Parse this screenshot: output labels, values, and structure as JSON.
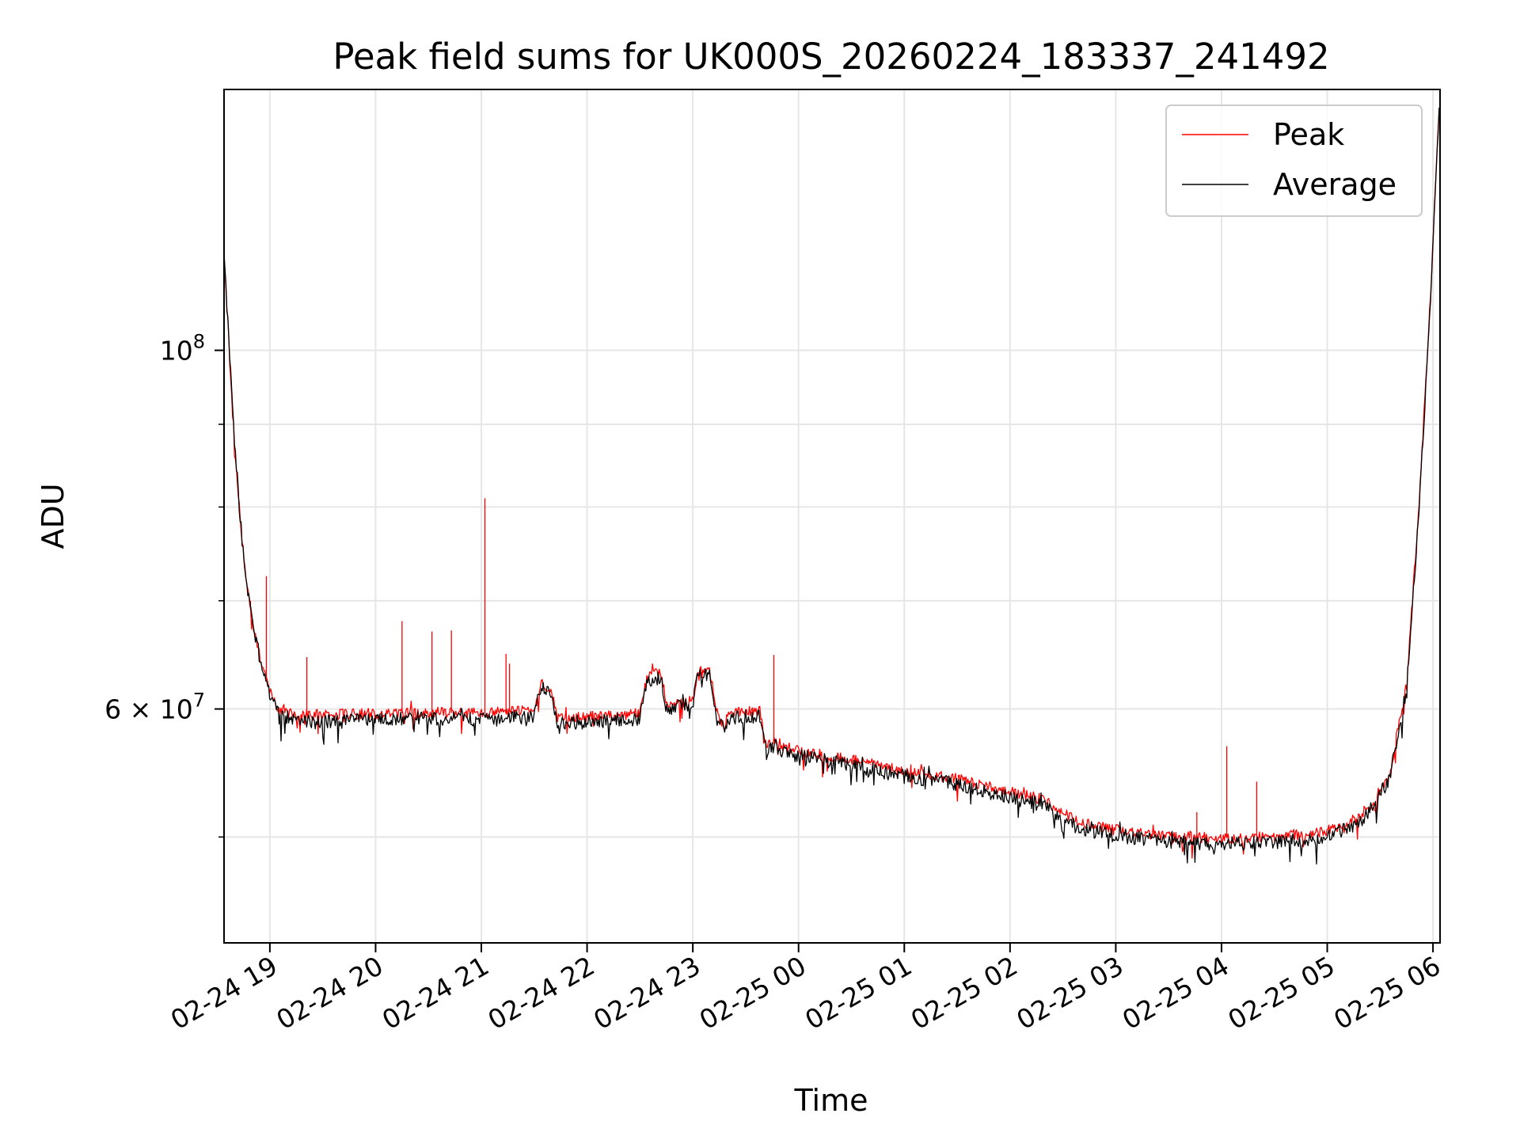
{
  "chart_data": {
    "type": "line",
    "title": "Peak field sums for UK000S_20260224_183337_241492",
    "xlabel": "Time",
    "ylabel": "ADU",
    "y_scale": "log",
    "grid": true,
    "legend_position": "top-right",
    "xlim": [
      "2026-02-24 18:34",
      "2026-02-25 06:04"
    ],
    "ylim": [
      43000000,
      145000000
    ],
    "x_ticks": [
      {
        "value": "2026-02-24 19:00",
        "label": "02-24 19"
      },
      {
        "value": "2026-02-24 20:00",
        "label": "02-24 20"
      },
      {
        "value": "2026-02-24 21:00",
        "label": "02-24 21"
      },
      {
        "value": "2026-02-24 22:00",
        "label": "02-24 22"
      },
      {
        "value": "2026-02-24 23:00",
        "label": "02-24 23"
      },
      {
        "value": "2026-02-25 00:00",
        "label": "02-25 00"
      },
      {
        "value": "2026-02-25 01:00",
        "label": "02-25 01"
      },
      {
        "value": "2026-02-25 02:00",
        "label": "02-25 02"
      },
      {
        "value": "2026-02-25 03:00",
        "label": "02-25 03"
      },
      {
        "value": "2026-02-25 04:00",
        "label": "02-25 04"
      },
      {
        "value": "2026-02-25 05:00",
        "label": "02-25 05"
      },
      {
        "value": "2026-02-25 06:00",
        "label": "02-25 06"
      }
    ],
    "y_major_ticks": [
      {
        "value": 100000000,
        "label_base": "10",
        "label_exp": "8"
      },
      {
        "value": 60000000,
        "label_base": "6 × 10",
        "label_exp": "7"
      }
    ],
    "y_minor_ticks": [
      50000000,
      60000000,
      70000000,
      80000000,
      90000000
    ],
    "series": [
      {
        "name": "Peak",
        "color": "#ff0000",
        "points": [
          [
            "2026-02-24 18:34",
            115000000
          ],
          [
            "2026-02-24 18:37",
            100000000
          ],
          [
            "2026-02-24 18:40",
            88000000
          ],
          [
            "2026-02-24 18:43",
            79000000
          ],
          [
            "2026-02-24 18:46",
            73000000
          ],
          [
            "2026-02-24 18:50",
            68000000
          ],
          [
            "2026-02-24 18:55",
            64000000
          ],
          [
            "2026-02-24 19:00",
            61500000
          ],
          [
            "2026-02-24 19:05",
            60000000
          ],
          [
            "2026-02-24 19:15",
            59500000
          ],
          [
            "2026-02-24 19:30",
            59500000
          ],
          [
            "2026-02-24 20:00",
            59600000
          ],
          [
            "2026-02-24 20:30",
            59700000
          ],
          [
            "2026-02-24 21:00",
            59600000
          ],
          [
            "2026-02-24 21:30",
            59900000
          ],
          [
            "2026-02-24 21:34",
            62500000
          ],
          [
            "2026-02-24 21:40",
            61500000
          ],
          [
            "2026-02-24 21:43",
            59200000
          ],
          [
            "2026-02-24 22:00",
            59300000
          ],
          [
            "2026-02-24 22:30",
            59600000
          ],
          [
            "2026-02-24 22:34",
            62800000
          ],
          [
            "2026-02-24 22:42",
            63200000
          ],
          [
            "2026-02-24 22:45",
            60500000
          ],
          [
            "2026-02-24 23:00",
            60700000
          ],
          [
            "2026-02-24 23:03",
            63700000
          ],
          [
            "2026-02-24 23:10",
            63200000
          ],
          [
            "2026-02-24 23:13",
            59800000
          ],
          [
            "2026-02-24 23:18",
            58400000
          ],
          [
            "2026-02-24 23:20",
            59600000
          ],
          [
            "2026-02-24 23:38",
            59800000
          ],
          [
            "2026-02-24 23:42",
            56600000
          ],
          [
            "2026-02-24 23:45",
            57500000
          ],
          [
            "2026-02-24 23:50",
            57000000
          ],
          [
            "2026-02-24 23:55",
            56700000
          ],
          [
            "2026-02-25 00:00",
            56500000
          ],
          [
            "2026-02-25 00:30",
            55800000
          ],
          [
            "2026-02-25 01:00",
            54900000
          ],
          [
            "2026-02-25 01:30",
            54300000
          ],
          [
            "2026-02-25 02:00",
            53300000
          ],
          [
            "2026-02-25 02:20",
            52700000
          ],
          [
            "2026-02-25 02:30",
            51700000
          ],
          [
            "2026-02-25 02:40",
            51000000
          ],
          [
            "2026-02-25 03:00",
            50500000
          ],
          [
            "2026-02-25 03:30",
            50100000
          ],
          [
            "2026-02-25 04:00",
            49900000
          ],
          [
            "2026-02-25 04:30",
            50000000
          ],
          [
            "2026-02-25 05:00",
            50400000
          ],
          [
            "2026-02-25 05:20",
            51500000
          ],
          [
            "2026-02-25 05:35",
            54500000
          ],
          [
            "2026-02-25 05:45",
            62000000
          ],
          [
            "2026-02-25 05:52",
            80000000
          ],
          [
            "2026-02-25 05:58",
            105000000
          ],
          [
            "2026-02-25 06:04",
            145000000
          ]
        ],
        "spikes": [
          [
            "2026-02-24 18:49",
            70000000
          ],
          [
            "2026-02-24 18:58",
            72500000
          ],
          [
            "2026-02-24 19:21",
            64600000
          ],
          [
            "2026-02-24 20:15",
            68000000
          ],
          [
            "2026-02-24 20:32",
            67000000
          ],
          [
            "2026-02-24 20:43",
            67100000
          ],
          [
            "2026-02-24 21:02",
            81000000
          ],
          [
            "2026-02-24 21:14",
            64900000
          ],
          [
            "2026-02-24 21:16",
            64000000
          ],
          [
            "2026-02-24 23:46",
            64800000
          ],
          [
            "2026-02-25 00:41",
            55400000
          ],
          [
            "2026-02-25 03:46",
            51800000
          ],
          [
            "2026-02-25 04:03",
            56900000
          ],
          [
            "2026-02-25 04:20",
            54100000
          ]
        ]
      },
      {
        "name": "Average",
        "color": "#000000",
        "points": [
          [
            "2026-02-24 18:34",
            115000000
          ],
          [
            "2026-02-24 18:37",
            100000000
          ],
          [
            "2026-02-24 18:40",
            88000000
          ],
          [
            "2026-02-24 18:43",
            79000000
          ],
          [
            "2026-02-24 18:46",
            73000000
          ],
          [
            "2026-02-24 18:50",
            68000000
          ],
          [
            "2026-02-24 18:55",
            64000000
          ],
          [
            "2026-02-24 19:00",
            61200000
          ],
          [
            "2026-02-24 19:05",
            59600000
          ],
          [
            "2026-02-24 19:15",
            59000000
          ],
          [
            "2026-02-24 19:30",
            59000000
          ],
          [
            "2026-02-24 20:00",
            59100000
          ],
          [
            "2026-02-24 20:30",
            59200000
          ],
          [
            "2026-02-24 21:00",
            59100000
          ],
          [
            "2026-02-24 21:30",
            59400000
          ],
          [
            "2026-02-24 21:34",
            62000000
          ],
          [
            "2026-02-24 21:40",
            61000000
          ],
          [
            "2026-02-24 21:43",
            58800000
          ],
          [
            "2026-02-24 22:00",
            58900000
          ],
          [
            "2026-02-24 22:30",
            59200000
          ],
          [
            "2026-02-24 22:34",
            62300000
          ],
          [
            "2026-02-24 22:42",
            62800000
          ],
          [
            "2026-02-24 22:45",
            60100000
          ],
          [
            "2026-02-24 23:00",
            60300000
          ],
          [
            "2026-02-24 23:03",
            63300000
          ],
          [
            "2026-02-24 23:10",
            62800000
          ],
          [
            "2026-02-24 23:13",
            59400000
          ],
          [
            "2026-02-24 23:18",
            58000000
          ],
          [
            "2026-02-24 23:20",
            59200000
          ],
          [
            "2026-02-24 23:38",
            59400000
          ],
          [
            "2026-02-24 23:42",
            56200000
          ],
          [
            "2026-02-24 23:45",
            57100000
          ],
          [
            "2026-02-24 23:50",
            56600000
          ],
          [
            "2026-02-24 23:55",
            56300000
          ],
          [
            "2026-02-25 00:00",
            56100000
          ],
          [
            "2026-02-25 00:30",
            55400000
          ],
          [
            "2026-02-25 01:00",
            54500000
          ],
          [
            "2026-02-25 01:30",
            53900000
          ],
          [
            "2026-02-25 02:00",
            52900000
          ],
          [
            "2026-02-25 02:20",
            52300000
          ],
          [
            "2026-02-25 02:30",
            51300000
          ],
          [
            "2026-02-25 02:40",
            50600000
          ],
          [
            "2026-02-25 03:00",
            50100000
          ],
          [
            "2026-02-25 03:30",
            49700000
          ],
          [
            "2026-02-25 04:00",
            49500000
          ],
          [
            "2026-02-25 04:30",
            49600000
          ],
          [
            "2026-02-25 05:00",
            50000000
          ],
          [
            "2026-02-25 05:20",
            51100000
          ],
          [
            "2026-02-25 05:35",
            54200000
          ],
          [
            "2026-02-25 05:45",
            61700000
          ],
          [
            "2026-02-25 05:52",
            79500000
          ],
          [
            "2026-02-25 05:58",
            104500000
          ],
          [
            "2026-02-25 06:04",
            145000000
          ]
        ]
      }
    ]
  }
}
